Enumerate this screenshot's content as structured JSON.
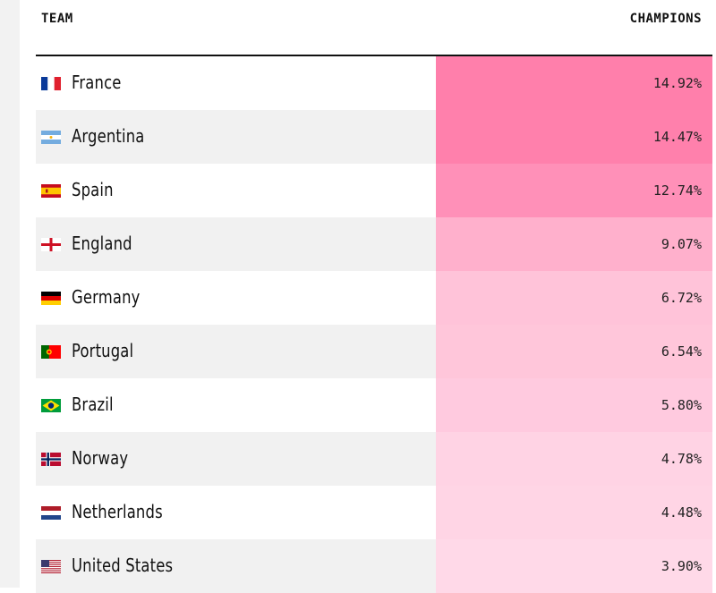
{
  "header": {
    "team": "TEAM",
    "champions": "CHAMPIONS"
  },
  "rows": [
    {
      "team": "France",
      "champions": "14.92%",
      "flag": "france-flag-icon",
      "cell_color": "#ff7fab"
    },
    {
      "team": "Argentina",
      "champions": "14.47%",
      "flag": "argentina-flag-icon",
      "cell_color": "#ff80ac"
    },
    {
      "team": "Spain",
      "champions": "12.74%",
      "flag": "spain-flag-icon",
      "cell_color": "#ff90b8"
    },
    {
      "team": "England",
      "champions": "9.07%",
      "flag": "england-flag-icon",
      "cell_color": "#ffb0cc"
    },
    {
      "team": "Germany",
      "champions": "6.72%",
      "flag": "germany-flag-icon",
      "cell_color": "#ffc3d9"
    },
    {
      "team": "Portugal",
      "champions": "6.54%",
      "flag": "portugal-flag-icon",
      "cell_color": "#ffc6da"
    },
    {
      "team": "Brazil",
      "champions": "5.80%",
      "flag": "brazil-flag-icon",
      "cell_color": "#ffcadf"
    },
    {
      "team": "Norway",
      "champions": "4.78%",
      "flag": "norway-flag-icon",
      "cell_color": "#ffd3e4"
    },
    {
      "team": "Netherlands",
      "champions": "4.48%",
      "flag": "netherlands-flag-icon",
      "cell_color": "#ffd5e5"
    },
    {
      "team": "United States",
      "champions": "3.90%",
      "flag": "united-states-flag-icon",
      "cell_color": "#ffd9e8"
    }
  ],
  "chart_data": {
    "type": "table",
    "columns": [
      "TEAM",
      "CHAMPIONS"
    ],
    "categories": [
      "France",
      "Argentina",
      "Spain",
      "England",
      "Germany",
      "Portugal",
      "Brazil",
      "Norway",
      "Netherlands",
      "United States"
    ],
    "values": [
      14.92,
      14.47,
      12.74,
      9.07,
      6.72,
      6.54,
      5.8,
      4.78,
      4.48,
      3.9
    ],
    "title": "",
    "xlabel": "",
    "ylabel": ""
  }
}
